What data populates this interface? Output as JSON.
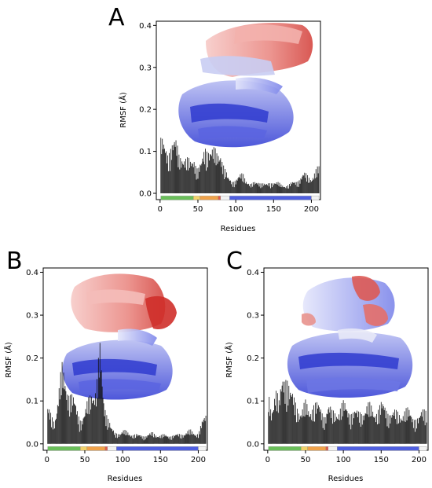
{
  "chart_data": [
    {
      "type": "bar",
      "panel_letter": "A",
      "title": "",
      "xlabel": "Residues",
      "ylabel": "RMSF (Å)",
      "xlim": [
        -5,
        212
      ],
      "ylim": [
        -0.015,
        0.41
      ],
      "xticks": [
        0,
        50,
        100,
        150,
        200
      ],
      "yticks": [
        0.0,
        0.1,
        0.2,
        0.3,
        0.4
      ],
      "ytick_labels": [
        "0.0",
        "0.1",
        "0.2",
        "0.3",
        "0.4"
      ],
      "grid": false,
      "legend": "none",
      "bar_color": "#111111",
      "profile_points": [
        [
          0,
          0.13
        ],
        [
          5,
          0.11
        ],
        [
          10,
          0.1
        ],
        [
          15,
          0.13
        ],
        [
          20,
          0.12
        ],
        [
          25,
          0.09
        ],
        [
          30,
          0.1
        ],
        [
          35,
          0.08
        ],
        [
          40,
          0.07
        ],
        [
          45,
          0.09
        ],
        [
          50,
          0.06
        ],
        [
          55,
          0.07
        ],
        [
          60,
          0.11
        ],
        [
          65,
          0.12
        ],
        [
          70,
          0.1
        ],
        [
          75,
          0.09
        ],
        [
          80,
          0.11
        ],
        [
          85,
          0.06
        ],
        [
          90,
          0.035
        ],
        [
          95,
          0.03
        ],
        [
          100,
          0.035
        ],
        [
          110,
          0.045
        ],
        [
          120,
          0.02
        ],
        [
          130,
          0.03
        ],
        [
          140,
          0.02
        ],
        [
          150,
          0.03
        ],
        [
          160,
          0.02
        ],
        [
          170,
          0.02
        ],
        [
          180,
          0.03
        ],
        [
          190,
          0.045
        ],
        [
          200,
          0.04
        ],
        [
          210,
          0.06
        ]
      ],
      "domain_track": [
        {
          "start": 1,
          "end": 44,
          "color": "#6abf5a"
        },
        {
          "start": 44,
          "end": 53,
          "color": "#f2d36b"
        },
        {
          "start": 53,
          "end": 77,
          "color": "#f0a24a"
        },
        {
          "start": 77,
          "end": 80,
          "color": "#e45a4a"
        },
        {
          "start": 80,
          "end": 92,
          "color": "#f2f2f2"
        },
        {
          "start": 92,
          "end": 200,
          "color": "#4f5fe0"
        },
        {
          "start": 200,
          "end": 210,
          "color": "#f2f2f2"
        }
      ]
    },
    {
      "type": "bar",
      "panel_letter": "B",
      "title": "",
      "xlabel": "Residues",
      "ylabel": "RMSF (Å)",
      "xlim": [
        -5,
        212
      ],
      "ylim": [
        -0.015,
        0.41
      ],
      "xticks": [
        0,
        50,
        100,
        150,
        200
      ],
      "yticks": [
        0.0,
        0.1,
        0.2,
        0.3,
        0.4
      ],
      "ytick_labels": [
        "0.0",
        "0.1",
        "0.2",
        "0.3",
        "0.4"
      ],
      "grid": false,
      "legend": "none",
      "bar_color": "#111111",
      "profile_points": [
        [
          0,
          0.08
        ],
        [
          5,
          0.07
        ],
        [
          10,
          0.06
        ],
        [
          15,
          0.11
        ],
        [
          20,
          0.17
        ],
        [
          25,
          0.16
        ],
        [
          30,
          0.12
        ],
        [
          35,
          0.1
        ],
        [
          40,
          0.08
        ],
        [
          45,
          0.06
        ],
        [
          50,
          0.07
        ],
        [
          55,
          0.1
        ],
        [
          60,
          0.14
        ],
        [
          65,
          0.13
        ],
        [
          70,
          0.21
        ],
        [
          75,
          0.11
        ],
        [
          80,
          0.07
        ],
        [
          85,
          0.035
        ],
        [
          90,
          0.025
        ],
        [
          100,
          0.03
        ],
        [
          110,
          0.025
        ],
        [
          120,
          0.02
        ],
        [
          130,
          0.02
        ],
        [
          140,
          0.025
        ],
        [
          150,
          0.02
        ],
        [
          160,
          0.02
        ],
        [
          170,
          0.02
        ],
        [
          180,
          0.025
        ],
        [
          190,
          0.03
        ],
        [
          200,
          0.025
        ],
        [
          210,
          0.07
        ]
      ],
      "domain_track": [
        {
          "start": 1,
          "end": 44,
          "color": "#6abf5a"
        },
        {
          "start": 44,
          "end": 53,
          "color": "#f2d36b"
        },
        {
          "start": 53,
          "end": 77,
          "color": "#f0a24a"
        },
        {
          "start": 77,
          "end": 80,
          "color": "#e45a4a"
        },
        {
          "start": 80,
          "end": 92,
          "color": "#f2f2f2"
        },
        {
          "start": 92,
          "end": 200,
          "color": "#4f5fe0"
        },
        {
          "start": 200,
          "end": 210,
          "color": "#f2f2f2"
        }
      ]
    },
    {
      "type": "bar",
      "panel_letter": "C",
      "title": "",
      "xlabel": "Residues",
      "ylabel": "RMSF (Å)",
      "xlim": [
        -5,
        212
      ],
      "ylim": [
        -0.015,
        0.41
      ],
      "xticks": [
        0,
        50,
        100,
        150,
        200
      ],
      "yticks": [
        0.0,
        0.1,
        0.2,
        0.3,
        0.4
      ],
      "ytick_labels": [
        "0.0",
        "0.1",
        "0.2",
        "0.3",
        "0.4"
      ],
      "grid": false,
      "legend": "none",
      "bar_color": "#111111",
      "profile_points": [
        [
          0,
          0.12
        ],
        [
          5,
          0.08
        ],
        [
          10,
          0.14
        ],
        [
          15,
          0.09
        ],
        [
          20,
          0.16
        ],
        [
          25,
          0.18
        ],
        [
          30,
          0.12
        ],
        [
          35,
          0.1
        ],
        [
          40,
          0.09
        ],
        [
          45,
          0.08
        ],
        [
          50,
          0.09
        ],
        [
          55,
          0.08
        ],
        [
          60,
          0.1
        ],
        [
          65,
          0.09
        ],
        [
          70,
          0.08
        ],
        [
          75,
          0.07
        ],
        [
          80,
          0.09
        ],
        [
          85,
          0.07
        ],
        [
          90,
          0.08
        ],
        [
          100,
          0.09
        ],
        [
          110,
          0.08
        ],
        [
          120,
          0.07
        ],
        [
          130,
          0.09
        ],
        [
          140,
          0.08
        ],
        [
          150,
          0.09
        ],
        [
          160,
          0.08
        ],
        [
          170,
          0.07
        ],
        [
          180,
          0.08
        ],
        [
          190,
          0.07
        ],
        [
          200,
          0.06
        ],
        [
          210,
          0.09
        ]
      ],
      "domain_track": [
        {
          "start": 1,
          "end": 44,
          "color": "#6abf5a"
        },
        {
          "start": 44,
          "end": 53,
          "color": "#f2d36b"
        },
        {
          "start": 53,
          "end": 77,
          "color": "#f0a24a"
        },
        {
          "start": 77,
          "end": 80,
          "color": "#e45a4a"
        },
        {
          "start": 80,
          "end": 92,
          "color": "#f2f2f2"
        },
        {
          "start": 92,
          "end": 200,
          "color": "#4f5fe0"
        },
        {
          "start": 200,
          "end": 210,
          "color": "#f2f2f2"
        }
      ]
    }
  ]
}
